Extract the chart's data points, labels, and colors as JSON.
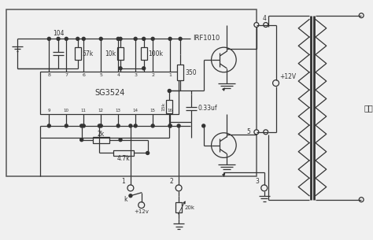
{
  "bg_color": "#f5f5f5",
  "line_color": "#444444",
  "labels": {
    "ic": "SG3524",
    "mosfet": "IRF1010",
    "cap1": "104",
    "res1": "57k",
    "res2": "10k",
    "res3": "100k",
    "res4": "350",
    "cap2": "0.33uf",
    "res5": "15k",
    "res6": "2k",
    "res7": "4.7k",
    "res8": "20k",
    "supply": "+12V",
    "supply2": "+12v",
    "output": "输出",
    "node1": "1",
    "node2": "2",
    "node3": "3",
    "node4": "4",
    "node5": "5",
    "switch": "k"
  },
  "pins_top": [
    "8",
    "7",
    "6",
    "5",
    "4",
    "3",
    "2",
    "1"
  ],
  "pins_bottom": [
    "9",
    "10",
    "11",
    "12",
    "13",
    "14",
    "15",
    "16"
  ]
}
